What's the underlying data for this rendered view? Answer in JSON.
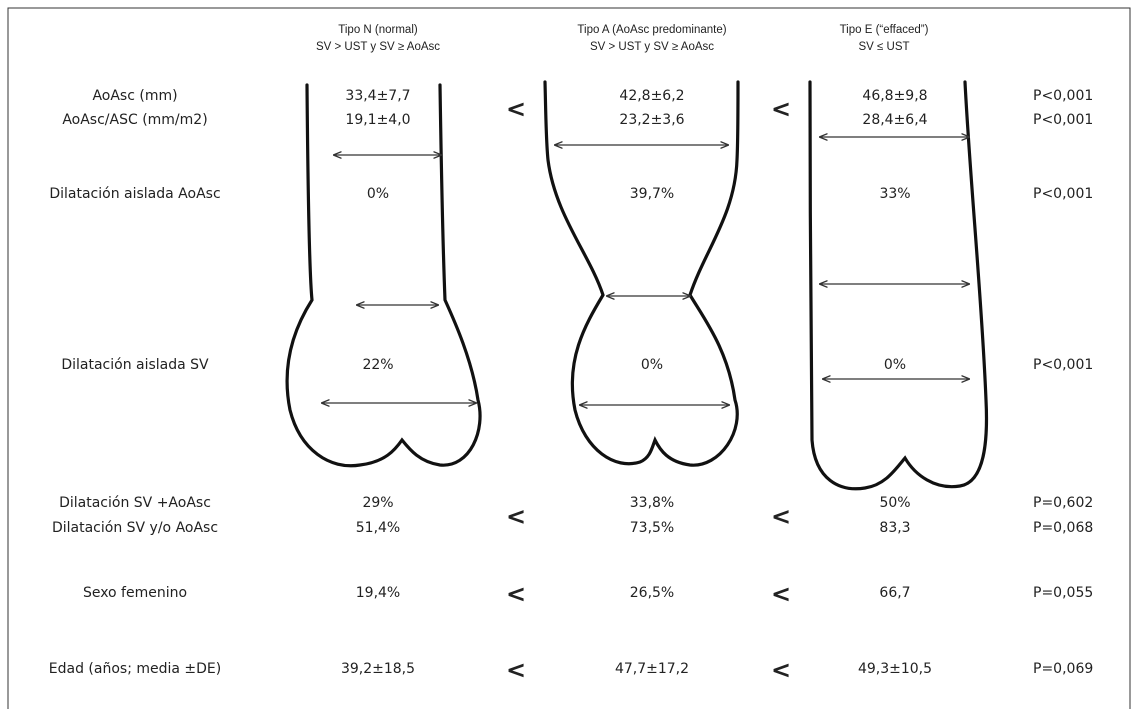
{
  "headers": [
    {
      "title": "Tipo N (normal)",
      "criteria": "SV > UST y SV ≥ AoAsc"
    },
    {
      "title": "Tipo A  (AoAsc predominante)",
      "criteria": "SV > UST y SV ≥ AoAsc"
    },
    {
      "title": "Tipo E (“effaced”)",
      "criteria": "SV ≤ UST"
    }
  ],
  "groups": [
    {
      "rows": [
        {
          "label": "AoAsc (mm)",
          "values": [
            "33,4±7,7",
            "42,8±6,2",
            "46,8±9,8"
          ],
          "p": "P<0,001"
        },
        {
          "label": "AoAsc/ASC (mm/m2)",
          "values": [
            "19,1±4,0",
            "23,2±3,6",
            "28,4±6,4"
          ],
          "p": "P<0,001"
        }
      ],
      "separators": [
        "<",
        "<"
      ]
    },
    {
      "rows": [
        {
          "label": "Dilatación aislada AoAsc",
          "values": [
            "0%",
            "39,7%",
            "33%"
          ],
          "p": "P<0,001"
        }
      ]
    },
    {
      "rows": [
        {
          "label": "Dilatación aislada SV",
          "values": [
            "22%",
            "0%",
            "0%"
          ],
          "p": "P<0,001"
        }
      ]
    },
    {
      "rows": [
        {
          "label": "Dilatación SV +AoAsc",
          "values": [
            "29%",
            "33,8%",
            "50%"
          ],
          "p": "P=0,602"
        },
        {
          "label": "Dilatación SV y/o AoAsc",
          "values": [
            "51,4%",
            "73,5%",
            "83,3"
          ],
          "p": "P=0,068"
        }
      ],
      "separators": [
        "<",
        "<"
      ]
    },
    {
      "rows": [
        {
          "label": "Sexo femenino",
          "values": [
            "19,4%",
            "26,5%",
            "66,7"
          ],
          "p": "P=0,055"
        }
      ],
      "separators": [
        "<",
        "<"
      ]
    },
    {
      "rows": [
        {
          "label": "Edad (años; media ±DE)",
          "values": [
            "39,2±18,5",
            "47,7±17,2",
            "49,3±10,5"
          ],
          "p": "P=0,069"
        }
      ],
      "separators": [
        "<",
        "<"
      ]
    }
  ]
}
